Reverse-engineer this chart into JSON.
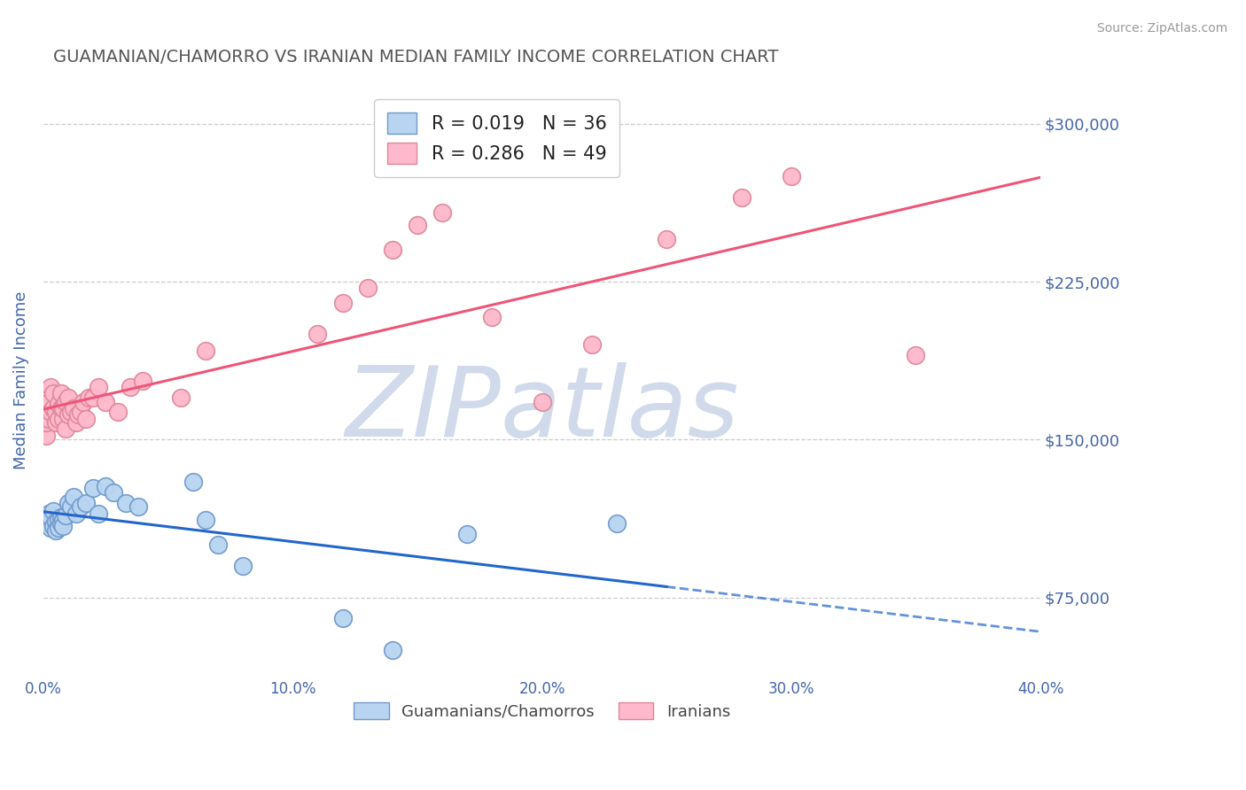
{
  "title": "GUAMANIAN/CHAMORRO VS IRANIAN MEDIAN FAMILY INCOME CORRELATION CHART",
  "source": "Source: ZipAtlas.com",
  "ylabel": "Median Family Income",
  "xlim": [
    0.0,
    0.4
  ],
  "ylim": [
    37500,
    318750
  ],
  "yticks": [
    75000,
    150000,
    225000,
    300000
  ],
  "ytick_labels": [
    "$75,000",
    "$150,000",
    "$225,000",
    "$300,000"
  ],
  "xticks": [
    0.0,
    0.1,
    0.2,
    0.3,
    0.4
  ],
  "xtick_labels": [
    "0.0%",
    "10.0%",
    "20.0%",
    "30.0%",
    "40.0%"
  ],
  "background_color": "#ffffff",
  "grid_color": "#cccccc",
  "title_color": "#555555",
  "axis_label_color": "#4466aa",
  "tick_label_color": "#4466aa",
  "watermark": "ZIPatlas",
  "watermark_color": "#d0daea",
  "guam": {
    "name": "Guamanians/Chamorros",
    "color": "#b8d4f0",
    "edge_color": "#7099cc",
    "R": 0.019,
    "N": 36,
    "line_color": "#2266cc",
    "x": [
      0.001,
      0.002,
      0.002,
      0.003,
      0.003,
      0.004,
      0.004,
      0.005,
      0.005,
      0.006,
      0.006,
      0.007,
      0.007,
      0.008,
      0.008,
      0.009,
      0.01,
      0.011,
      0.012,
      0.013,
      0.015,
      0.017,
      0.02,
      0.022,
      0.025,
      0.028,
      0.033,
      0.038,
      0.06,
      0.065,
      0.07,
      0.08,
      0.12,
      0.14,
      0.17,
      0.23
    ],
    "y": [
      112000,
      110000,
      115000,
      108000,
      113000,
      109000,
      116000,
      111000,
      107000,
      112000,
      108000,
      113000,
      110000,
      112000,
      109000,
      114000,
      120000,
      118000,
      123000,
      115000,
      118000,
      120000,
      127000,
      115000,
      128000,
      125000,
      120000,
      118000,
      130000,
      112000,
      100000,
      90000,
      65000,
      50000,
      105000,
      110000
    ]
  },
  "iran": {
    "name": "Iranians",
    "color": "#ffb8cc",
    "edge_color": "#dd8899",
    "R": 0.286,
    "N": 49,
    "line_color": "#ee5577",
    "x": [
      0.001,
      0.001,
      0.002,
      0.002,
      0.003,
      0.003,
      0.004,
      0.004,
      0.005,
      0.005,
      0.006,
      0.006,
      0.007,
      0.007,
      0.008,
      0.008,
      0.009,
      0.009,
      0.01,
      0.01,
      0.011,
      0.012,
      0.013,
      0.014,
      0.015,
      0.016,
      0.017,
      0.018,
      0.02,
      0.022,
      0.025,
      0.03,
      0.035,
      0.04,
      0.055,
      0.065,
      0.11,
      0.12,
      0.13,
      0.14,
      0.15,
      0.16,
      0.18,
      0.2,
      0.22,
      0.25,
      0.28,
      0.3,
      0.35
    ],
    "y": [
      152000,
      158000,
      160000,
      168000,
      163000,
      175000,
      165000,
      172000,
      158000,
      163000,
      160000,
      167000,
      165000,
      172000,
      160000,
      165000,
      168000,
      155000,
      162000,
      170000,
      163000,
      165000,
      158000,
      162000,
      163000,
      168000,
      160000,
      170000,
      170000,
      175000,
      168000,
      163000,
      175000,
      178000,
      170000,
      192000,
      200000,
      215000,
      222000,
      240000,
      252000,
      258000,
      208000,
      168000,
      195000,
      245000,
      265000,
      275000,
      190000
    ]
  }
}
